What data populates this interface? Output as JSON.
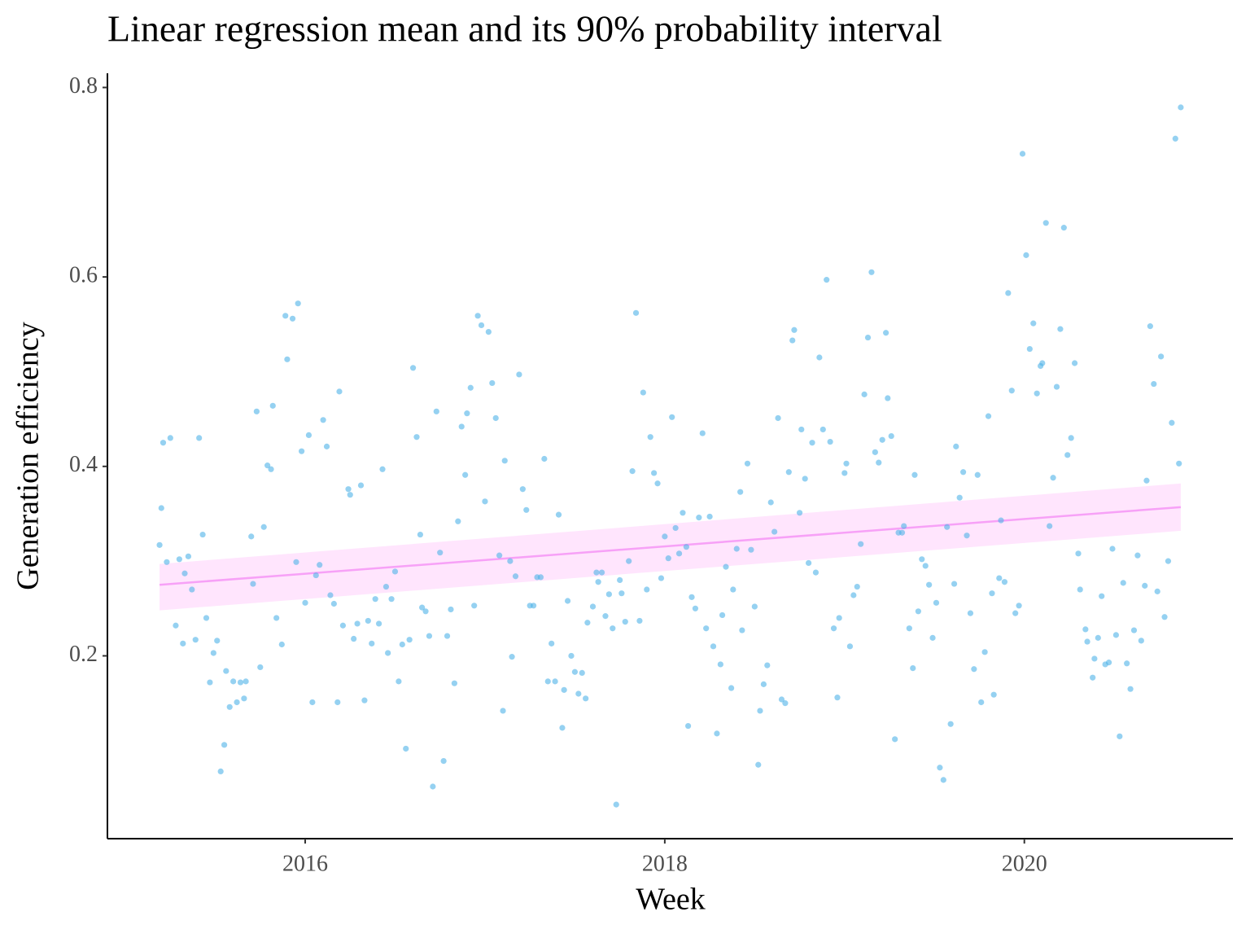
{
  "chart_data": {
    "type": "scatter",
    "title": "Linear regression mean and its 90% probability interval",
    "x_label": "Week",
    "y_label": "Generation efficiency",
    "xlim": [
      2014.9,
      2021.16
    ],
    "xticks": [
      2016,
      2018,
      2020
    ],
    "ylim": [
      0.007,
      0.815
    ],
    "yticks": [
      0.2,
      0.4,
      0.6,
      0.8
    ],
    "points": {
      "color": "#4fb3e8",
      "x": [
        2015.19,
        2015.2,
        2015.21,
        2015.23,
        2015.25,
        2015.28,
        2015.3,
        2015.32,
        2015.33,
        2015.35,
        2015.37,
        2015.39,
        2015.41,
        2015.43,
        2015.45,
        2015.47,
        2015.49,
        2015.51,
        2015.53,
        2015.55,
        2015.56,
        2015.58,
        2015.6,
        2015.62,
        2015.64,
        2015.66,
        2015.67,
        2015.7,
        2015.71,
        2015.73,
        2015.75,
        2015.77,
        2015.79,
        2015.81,
        2015.82,
        2015.84,
        2015.87,
        2015.89,
        2015.9,
        2015.93,
        2015.95,
        2015.96,
        2015.98,
        2016.0,
        2016.02,
        2016.04,
        2016.06,
        2016.08,
        2016.1,
        2016.12,
        2016.14,
        2016.16,
        2016.18,
        2016.19,
        2016.21,
        2016.24,
        2016.25,
        2016.27,
        2016.29,
        2016.31,
        2016.33,
        2016.35,
        2016.37,
        2016.39,
        2016.41,
        2016.43,
        2016.45,
        2016.46,
        2016.48,
        2016.5,
        2016.52,
        2016.54,
        2016.56,
        2016.58,
        2016.6,
        2016.62,
        2016.64,
        2016.65,
        2016.67,
        2016.69,
        2016.71,
        2016.73,
        2016.75,
        2016.77,
        2016.79,
        2016.81,
        2016.83,
        2016.85,
        2016.87,
        2016.89,
        2016.9,
        2016.92,
        2016.94,
        2016.96,
        2016.98,
        2017.0,
        2017.02,
        2017.04,
        2017.06,
        2017.08,
        2017.1,
        2017.11,
        2017.14,
        2017.15,
        2017.17,
        2017.19,
        2017.21,
        2017.23,
        2017.25,
        2017.27,
        2017.29,
        2017.31,
        2017.33,
        2017.35,
        2017.37,
        2017.39,
        2017.41,
        2017.43,
        2017.44,
        2017.46,
        2017.48,
        2017.5,
        2017.52,
        2017.54,
        2017.56,
        2017.57,
        2017.6,
        2017.62,
        2017.63,
        2017.65,
        2017.67,
        2017.69,
        2017.71,
        2017.73,
        2017.75,
        2017.76,
        2017.78,
        2017.8,
        2017.82,
        2017.84,
        2017.86,
        2017.88,
        2017.9,
        2017.92,
        2017.94,
        2017.96,
        2017.98,
        2018.0,
        2018.02,
        2018.04,
        2018.06,
        2018.08,
        2018.1,
        2018.12,
        2018.13,
        2018.15,
        2018.17,
        2018.19,
        2018.21,
        2018.23,
        2018.25,
        2018.27,
        2018.29,
        2018.31,
        2018.32,
        2018.34,
        2018.37,
        2018.38,
        2018.4,
        2018.42,
        2018.43,
        2018.46,
        2018.48,
        2018.5,
        2018.52,
        2018.53,
        2018.55,
        2018.57,
        2018.59,
        2018.61,
        2018.63,
        2018.65,
        2018.67,
        2018.69,
        2018.71,
        2018.72,
        2018.75,
        2018.76,
        2018.78,
        2018.8,
        2018.82,
        2018.84,
        2018.86,
        2018.88,
        2018.9,
        2018.92,
        2018.94,
        2018.96,
        2018.97,
        2019.0,
        2019.01,
        2019.03,
        2019.05,
        2019.07,
        2019.09,
        2019.11,
        2019.13,
        2019.15,
        2019.17,
        2019.19,
        2019.21,
        2019.23,
        2019.24,
        2019.26,
        2019.28,
        2019.3,
        2019.32,
        2019.33,
        2019.36,
        2019.38,
        2019.39,
        2019.41,
        2019.43,
        2019.45,
        2019.47,
        2019.49,
        2019.51,
        2019.53,
        2019.55,
        2019.57,
        2019.59,
        2019.61,
        2019.62,
        2019.64,
        2019.66,
        2019.68,
        2019.7,
        2019.72,
        2019.74,
        2019.76,
        2019.78,
        2019.8,
        2019.82,
        2019.83,
        2019.86,
        2019.87,
        2019.89,
        2019.91,
        2019.93,
        2019.95,
        2019.97,
        2019.99,
        2020.01,
        2020.03,
        2020.05,
        2020.07,
        2020.09,
        2020.1,
        2020.12,
        2020.14,
        2020.16,
        2020.18,
        2020.2,
        2020.22,
        2020.24,
        2020.26,
        2020.28,
        2020.3,
        2020.31,
        2020.34,
        2020.35,
        2020.38,
        2020.39,
        2020.41,
        2020.43,
        2020.45,
        2020.47,
        2020.49,
        2020.51,
        2020.53,
        2020.55,
        2020.57,
        2020.59,
        2020.61,
        2020.63,
        2020.65,
        2020.67,
        2020.68,
        2020.7,
        2020.72,
        2020.74,
        2020.76,
        2020.78,
        2020.8,
        2020.82,
        2020.84,
        2020.86,
        2020.87
      ],
      "values": [
        0.317,
        0.356,
        0.425,
        0.299,
        0.43,
        0.232,
        0.302,
        0.213,
        0.287,
        0.305,
        0.27,
        0.217,
        0.43,
        0.328,
        0.24,
        0.172,
        0.203,
        0.216,
        0.078,
        0.106,
        0.184,
        0.146,
        0.173,
        0.151,
        0.172,
        0.155,
        0.173,
        0.326,
        0.276,
        0.458,
        0.188,
        0.336,
        0.401,
        0.397,
        0.464,
        0.24,
        0.212,
        0.559,
        0.513,
        0.556,
        0.299,
        0.572,
        0.416,
        0.256,
        0.433,
        0.151,
        0.285,
        0.296,
        0.449,
        0.421,
        0.264,
        0.255,
        0.151,
        0.479,
        0.232,
        0.376,
        0.37,
        0.218,
        0.234,
        0.38,
        0.153,
        0.237,
        0.213,
        0.26,
        0.234,
        0.397,
        0.273,
        0.203,
        0.26,
        0.289,
        0.173,
        0.212,
        0.102,
        0.217,
        0.504,
        0.431,
        0.328,
        0.251,
        0.247,
        0.221,
        0.062,
        0.458,
        0.309,
        0.089,
        0.221,
        0.249,
        0.171,
        0.342,
        0.442,
        0.391,
        0.456,
        0.483,
        0.253,
        0.559,
        0.549,
        0.363,
        0.542,
        0.488,
        0.451,
        0.306,
        0.142,
        0.406,
        0.3,
        0.199,
        0.284,
        0.497,
        0.376,
        0.354,
        0.253,
        0.253,
        0.283,
        0.283,
        0.408,
        0.173,
        0.213,
        0.173,
        0.349,
        0.124,
        0.164,
        0.258,
        0.2,
        0.183,
        0.16,
        0.182,
        0.155,
        0.235,
        0.252,
        0.288,
        0.278,
        0.288,
        0.242,
        0.265,
        0.229,
        0.043,
        0.28,
        0.266,
        0.236,
        0.3,
        0.395,
        0.562,
        0.237,
        0.478,
        0.27,
        0.431,
        0.393,
        0.382,
        0.282,
        0.326,
        0.303,
        0.452,
        0.335,
        0.308,
        0.351,
        0.315,
        0.126,
        0.262,
        0.25,
        0.346,
        0.435,
        0.229,
        0.347,
        0.21,
        0.118,
        0.191,
        0.243,
        0.294,
        0.166,
        0.27,
        0.313,
        0.373,
        0.227,
        0.403,
        0.312,
        0.252,
        0.085,
        0.142,
        0.17,
        0.19,
        0.362,
        0.331,
        0.451,
        0.154,
        0.15,
        0.394,
        0.533,
        0.544,
        0.351,
        0.439,
        0.387,
        0.298,
        0.425,
        0.288,
        0.515,
        0.439,
        0.597,
        0.426,
        0.229,
        0.156,
        0.24,
        0.393,
        0.403,
        0.21,
        0.264,
        0.273,
        0.318,
        0.476,
        0.536,
        0.605,
        0.415,
        0.404,
        0.428,
        0.541,
        0.472,
        0.432,
        0.112,
        0.33,
        0.33,
        0.337,
        0.229,
        0.187,
        0.391,
        0.247,
        0.302,
        0.295,
        0.275,
        0.219,
        0.256,
        0.082,
        0.069,
        0.336,
        0.128,
        0.276,
        0.421,
        0.367,
        0.394,
        0.327,
        0.245,
        0.186,
        0.391,
        0.151,
        0.204,
        0.453,
        0.266,
        0.159,
        0.282,
        0.343,
        0.278,
        0.583,
        0.48,
        0.245,
        0.253,
        0.73,
        0.623,
        0.524,
        0.551,
        0.477,
        0.506,
        0.509,
        0.657,
        0.337,
        0.388,
        0.484,
        0.545,
        0.652,
        0.412,
        0.43,
        0.509,
        0.308,
        0.27,
        0.228,
        0.215,
        0.177,
        0.197,
        0.219,
        0.263,
        0.191,
        0.193,
        0.313,
        0.222,
        0.115,
        0.277,
        0.192,
        0.165,
        0.227,
        0.306,
        0.216,
        0.274,
        0.385,
        0.548,
        0.487,
        0.268,
        0.516,
        0.241,
        0.3,
        0.446,
        0.746,
        0.403,
        0.779
      ]
    },
    "fit": {
      "color": "#f7a1f7",
      "band_color": "#ffe0fd",
      "x": [
        2015.19,
        2020.87
      ],
      "values": [
        0.275,
        0.357
      ],
      "lower": [
        0.248,
        0.332
      ],
      "upper": [
        0.297,
        0.382
      ]
    }
  }
}
